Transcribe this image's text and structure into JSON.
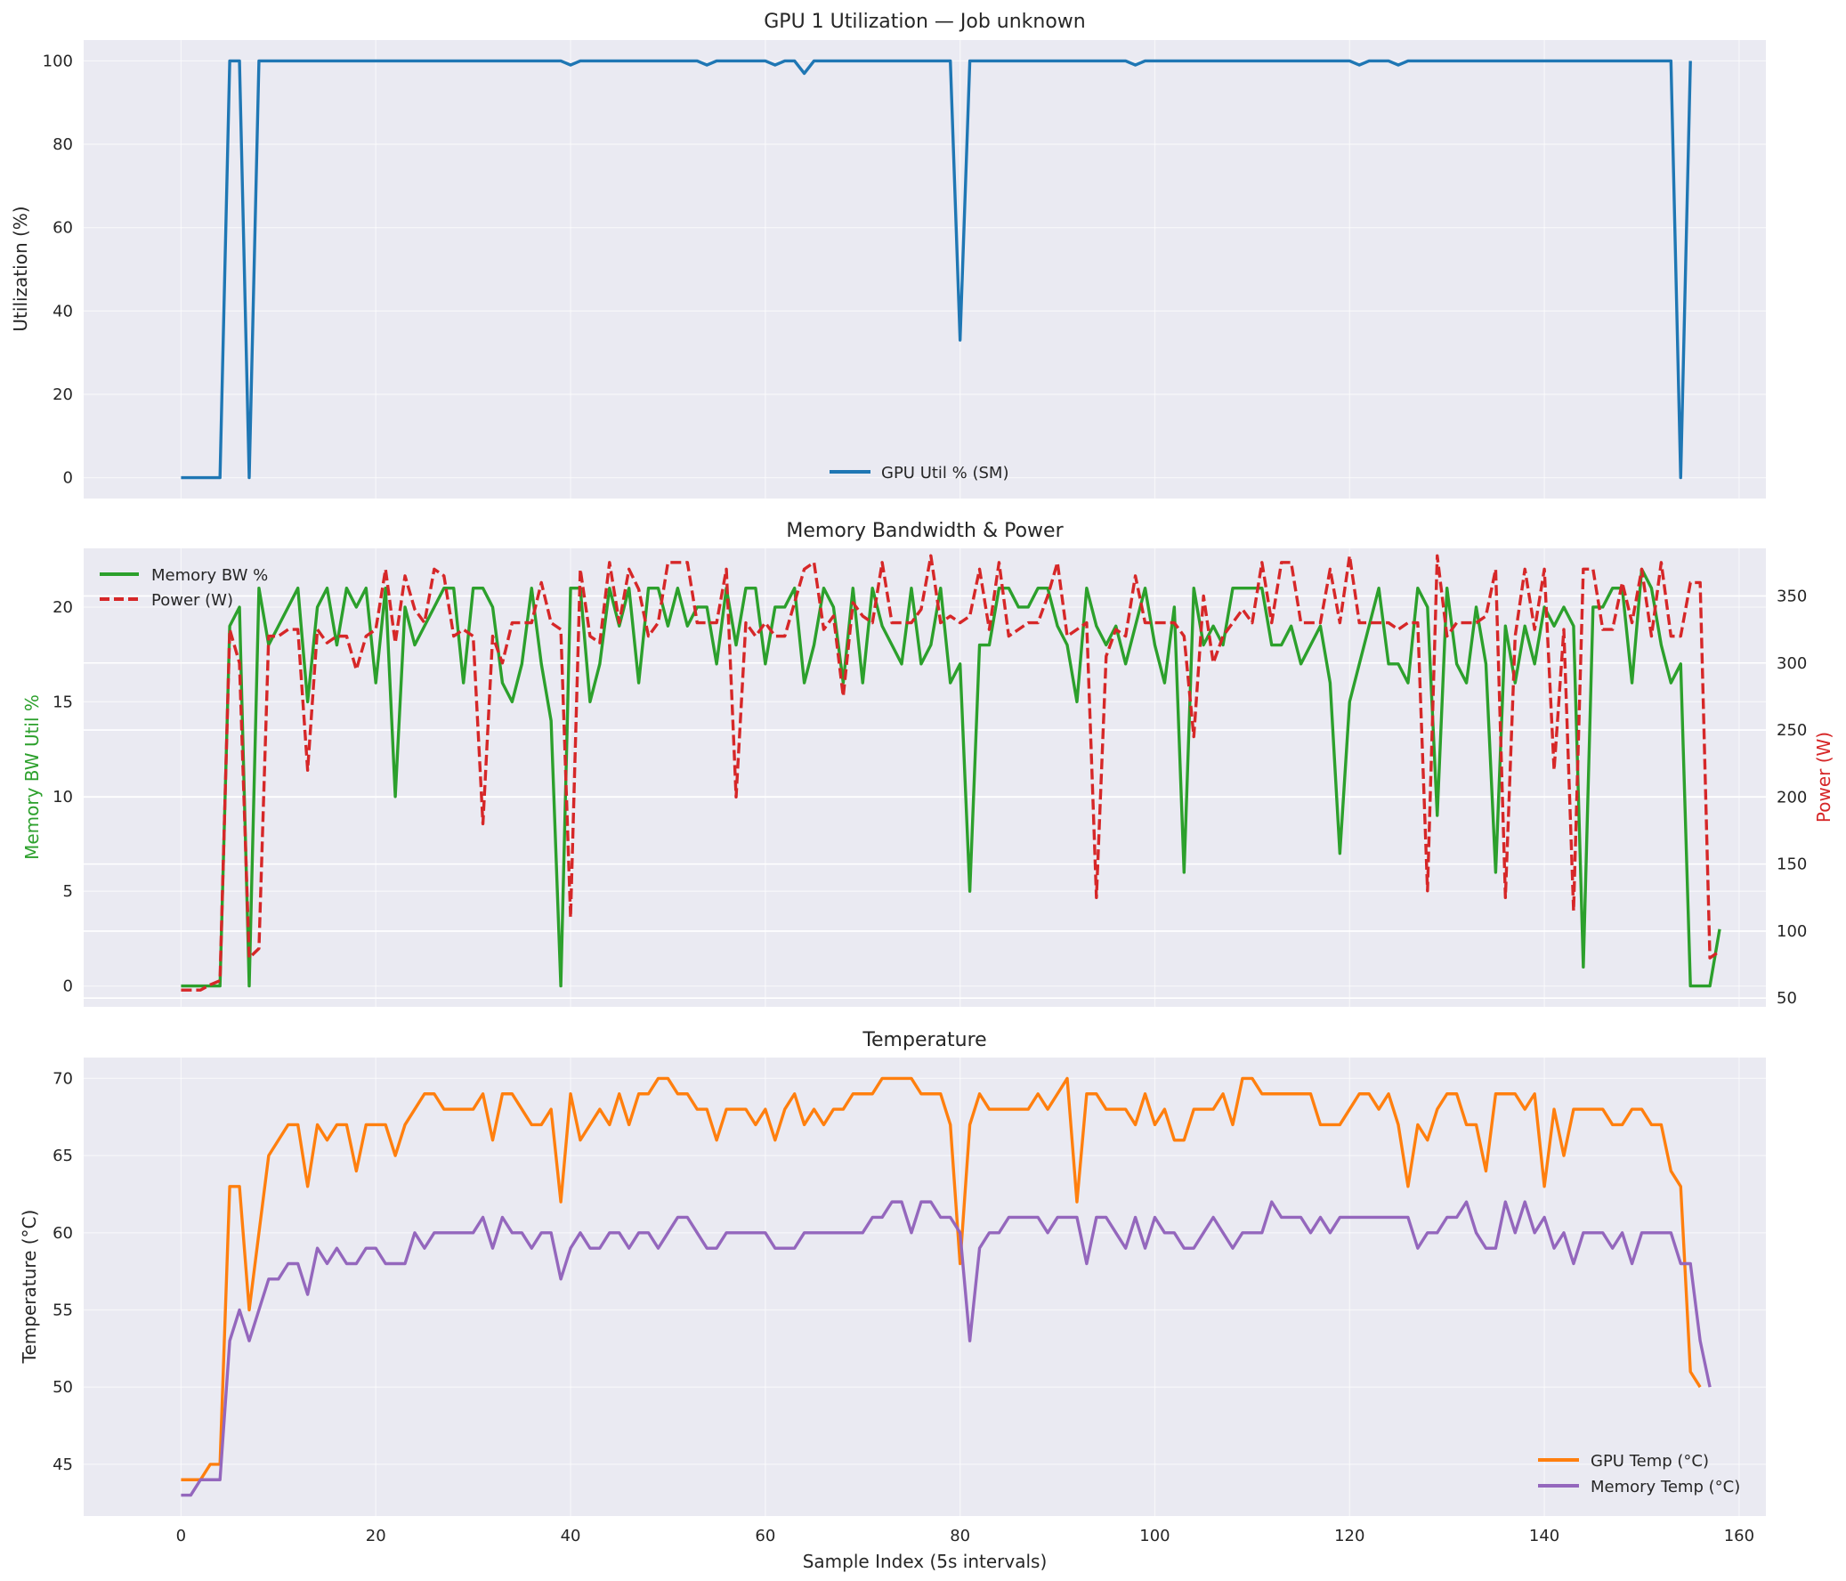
{
  "chart_data": [
    {
      "type": "line",
      "title": "GPU 1 Utilization — Job unknown",
      "xlabel": "",
      "ylabel": "Utilization (%)",
      "xlim": [
        -10,
        162.75
      ],
      "ylim": [
        -5,
        105
      ],
      "yticks": [
        0,
        20,
        40,
        60,
        80,
        100
      ],
      "xticks": [
        0,
        20,
        40,
        60,
        80,
        100,
        120,
        140,
        160
      ],
      "show_xtick_labels": false,
      "grid": true,
      "legend_position": "lower center",
      "series": [
        {
          "name": "GPU Util % (SM)",
          "color": "#1f77b4",
          "style": "solid",
          "values": [
            0,
            0,
            0,
            0,
            0,
            100,
            100,
            0,
            100,
            100,
            100,
            100,
            100,
            100,
            100,
            100,
            100,
            100,
            100,
            100,
            100,
            100,
            100,
            100,
            100,
            100,
            100,
            100,
            100,
            100,
            100,
            100,
            100,
            100,
            100,
            100,
            100,
            100,
            100,
            100,
            99,
            100,
            100,
            100,
            100,
            100,
            100,
            100,
            100,
            100,
            100,
            100,
            100,
            100,
            99,
            100,
            100,
            100,
            100,
            100,
            100,
            99,
            100,
            100,
            97,
            100,
            100,
            100,
            100,
            100,
            100,
            100,
            100,
            100,
            100,
            100,
            100,
            100,
            100,
            100,
            33,
            100,
            100,
            100,
            100,
            100,
            100,
            100,
            100,
            100,
            100,
            100,
            100,
            100,
            100,
            100,
            100,
            100,
            99,
            100,
            100,
            100,
            100,
            100,
            100,
            100,
            100,
            100,
            100,
            100,
            100,
            100,
            100,
            100,
            100,
            100,
            100,
            100,
            100,
            100,
            100,
            99,
            100,
            100,
            100,
            99,
            100,
            100,
            100,
            100,
            100,
            100,
            100,
            100,
            100,
            100,
            100,
            100,
            100,
            100,
            100,
            100,
            100,
            100,
            100,
            100,
            100,
            100,
            100,
            100,
            100,
            100,
            100,
            100,
            0,
            100
          ]
        }
      ]
    },
    {
      "type": "line",
      "title": "Memory Bandwidth & Power",
      "xlabel": "",
      "ylabel": "Memory BW Util %",
      "ylabel_right": "Power (W)",
      "xlim": [
        -10,
        162.75
      ],
      "ylim": [
        -1.1,
        23.1
      ],
      "ylim_right": [
        43.5,
        385.5
      ],
      "yticks": [
        0,
        5,
        10,
        15,
        20
      ],
      "yticks_right": [
        50,
        100,
        150,
        200,
        250,
        300,
        350
      ],
      "xticks": [
        0,
        20,
        40,
        60,
        80,
        100,
        120,
        140,
        160
      ],
      "show_xtick_labels": false,
      "grid": true,
      "legend_position": "upper left",
      "series": [
        {
          "name": "Memory BW %",
          "color": "#2ca02c",
          "style": "solid",
          "axis": "left",
          "values": [
            0,
            0,
            0,
            0,
            0,
            19,
            20,
            0,
            21,
            18,
            19,
            20,
            21,
            15,
            20,
            21,
            18,
            21,
            20,
            21,
            16,
            21,
            10,
            20,
            18,
            19,
            20,
            21,
            21,
            16,
            21,
            21,
            20,
            16,
            15,
            17,
            21,
            17,
            14,
            0,
            21,
            21,
            15,
            17,
            21,
            19,
            21,
            16,
            21,
            21,
            19,
            21,
            19,
            20,
            20,
            17,
            21,
            18,
            21,
            21,
            17,
            20,
            20,
            21,
            16,
            18,
            21,
            20,
            16,
            21,
            16,
            21,
            19,
            18,
            17,
            21,
            17,
            18,
            21,
            16,
            17,
            5,
            18,
            18,
            21,
            21,
            20,
            20,
            21,
            21,
            19,
            18,
            15,
            21,
            19,
            18,
            19,
            17,
            19,
            21,
            18,
            16,
            20,
            6,
            21,
            18,
            19,
            18,
            21,
            21,
            21,
            21,
            18,
            18,
            19,
            17,
            18,
            19,
            16,
            7,
            15,
            17,
            19,
            21,
            17,
            17,
            16,
            21,
            20,
            9,
            21,
            17,
            16,
            20,
            17,
            6,
            19,
            16,
            19,
            17,
            20,
            19,
            20,
            19,
            1,
            20,
            20,
            21,
            21,
            16,
            22,
            21,
            18,
            16,
            17,
            0,
            0,
            0,
            3
          ]
        },
        {
          "name": "Power (W)",
          "color": "#d62728",
          "style": "dashed",
          "axis": "right",
          "values": [
            56,
            56,
            56,
            60,
            63,
            325,
            300,
            80,
            87,
            320,
            320,
            325,
            325,
            220,
            325,
            315,
            320,
            320,
            295,
            320,
            325,
            370,
            315,
            365,
            340,
            330,
            370,
            365,
            320,
            325,
            320,
            180,
            320,
            300,
            330,
            330,
            330,
            360,
            330,
            325,
            110,
            370,
            320,
            315,
            375,
            330,
            370,
            355,
            320,
            330,
            375,
            375,
            375,
            330,
            330,
            330,
            370,
            200,
            330,
            320,
            330,
            320,
            320,
            345,
            370,
            375,
            325,
            335,
            275,
            345,
            335,
            330,
            375,
            330,
            330,
            330,
            340,
            380,
            330,
            335,
            330,
            335,
            370,
            325,
            375,
            320,
            325,
            330,
            330,
            350,
            375,
            320,
            325,
            330,
            125,
            305,
            325,
            320,
            365,
            330,
            330,
            330,
            330,
            320,
            245,
            350,
            300,
            320,
            330,
            340,
            330,
            375,
            330,
            375,
            375,
            330,
            330,
            330,
            370,
            330,
            380,
            330,
            330,
            330,
            330,
            325,
            330,
            330,
            130,
            380,
            320,
            330,
            330,
            330,
            335,
            370,
            125,
            320,
            370,
            325,
            370,
            220,
            325,
            115,
            370,
            370,
            325,
            325,
            360,
            330,
            370,
            320,
            375,
            320,
            320,
            360,
            360,
            80,
            85
          ]
        }
      ]
    },
    {
      "type": "line",
      "title": "Temperature",
      "xlabel": "Sample Index (5s intervals)",
      "ylabel": "Temperature (°C)",
      "xlim": [
        -10,
        162.75
      ],
      "ylim": [
        41.65,
        71.35
      ],
      "yticks": [
        45,
        50,
        55,
        60,
        65,
        70
      ],
      "xticks": [
        0,
        20,
        40,
        60,
        80,
        100,
        120,
        140,
        160
      ],
      "show_xtick_labels": true,
      "grid": true,
      "legend_position": "lower right",
      "series": [
        {
          "name": "GPU Temp (°C)",
          "color": "#ff7f0e",
          "style": "solid",
          "values": [
            44,
            44,
            44,
            45,
            45,
            63,
            63,
            55,
            60,
            65,
            66,
            67,
            67,
            63,
            67,
            66,
            67,
            67,
            64,
            67,
            67,
            67,
            65,
            67,
            68,
            69,
            69,
            68,
            68,
            68,
            68,
            69,
            66,
            69,
            69,
            68,
            67,
            67,
            68,
            62,
            69,
            66,
            67,
            68,
            67,
            69,
            67,
            69,
            69,
            70,
            70,
            69,
            69,
            68,
            68,
            66,
            68,
            68,
            68,
            67,
            68,
            66,
            68,
            69,
            67,
            68,
            67,
            68,
            68,
            69,
            69,
            69,
            70,
            70,
            70,
            70,
            69,
            69,
            69,
            67,
            58,
            67,
            69,
            68,
            68,
            68,
            68,
            68,
            69,
            68,
            69,
            70,
            62,
            69,
            69,
            68,
            68,
            68,
            67,
            69,
            67,
            68,
            66,
            66,
            68,
            68,
            68,
            69,
            67,
            70,
            70,
            69,
            69,
            69,
            69,
            69,
            69,
            67,
            67,
            67,
            68,
            69,
            69,
            68,
            69,
            67,
            63,
            67,
            66,
            68,
            69,
            69,
            67,
            67,
            64,
            69,
            69,
            69,
            68,
            69,
            63,
            68,
            65,
            68,
            68,
            68,
            68,
            67,
            67,
            68,
            68,
            67,
            67,
            64,
            63,
            51,
            50
          ]
        },
        {
          "name": "Memory Temp (°C)",
          "color": "#9467bd",
          "style": "solid",
          "values": [
            43,
            43,
            44,
            44,
            44,
            53,
            55,
            53,
            55,
            57,
            57,
            58,
            58,
            56,
            59,
            58,
            59,
            58,
            58,
            59,
            59,
            58,
            58,
            58,
            60,
            59,
            60,
            60,
            60,
            60,
            60,
            61,
            59,
            61,
            60,
            60,
            59,
            60,
            60,
            57,
            59,
            60,
            59,
            59,
            60,
            60,
            59,
            60,
            60,
            59,
            60,
            61,
            61,
            60,
            59,
            59,
            60,
            60,
            60,
            60,
            60,
            59,
            59,
            59,
            60,
            60,
            60,
            60,
            60,
            60,
            60,
            61,
            61,
            62,
            62,
            60,
            62,
            62,
            61,
            61,
            60,
            53,
            59,
            60,
            60,
            61,
            61,
            61,
            61,
            60,
            61,
            61,
            61,
            58,
            61,
            61,
            60,
            59,
            61,
            59,
            61,
            60,
            60,
            59,
            59,
            60,
            61,
            60,
            59,
            60,
            60,
            60,
            62,
            61,
            61,
            61,
            60,
            61,
            60,
            61,
            61,
            61,
            61,
            61,
            61,
            61,
            61,
            59,
            60,
            60,
            61,
            61,
            62,
            60,
            59,
            59,
            62,
            60,
            62,
            60,
            61,
            59,
            60,
            58,
            60,
            60,
            60,
            59,
            60,
            58,
            60,
            60,
            60,
            60,
            58,
            58,
            53,
            50
          ]
        }
      ]
    }
  ]
}
